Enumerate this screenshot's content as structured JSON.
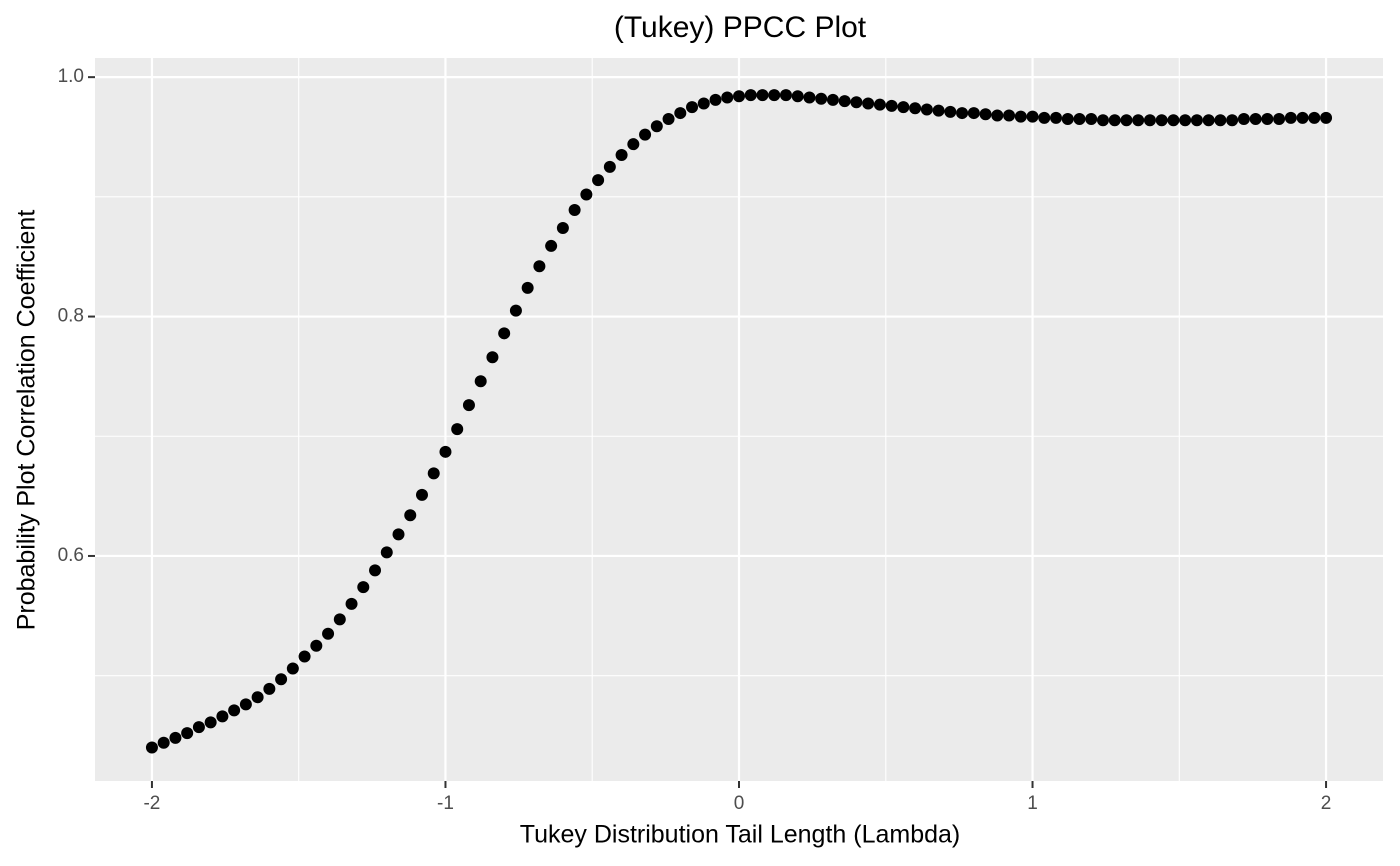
{
  "chart_data": {
    "type": "scatter",
    "title": "(Tukey) PPCC Plot",
    "x_label": "Tukey Distribution Tail Length (Lambda)",
    "y_label": "Probability Plot Correlation Coefficient",
    "xlim": [
      -2.194,
      2.194
    ],
    "ylim": [
      0.412,
      1.016
    ],
    "xticks": [
      -2,
      -1,
      0,
      1,
      2
    ],
    "yticks": [
      0.6,
      0.8,
      {
        "value": 1.0,
        "label": "1.0"
      }
    ],
    "xminor": [
      -1.5,
      -0.5,
      0.5,
      1.5
    ],
    "yminor": [
      0.5,
      0.7,
      0.9
    ],
    "grid": true,
    "color": "#000000",
    "x": [
      -2.0,
      -1.96,
      -1.92,
      -1.88,
      -1.84,
      -1.8,
      -1.76,
      -1.72,
      -1.68,
      -1.64,
      -1.6,
      -1.56,
      -1.52,
      -1.48,
      -1.44,
      -1.4,
      -1.36,
      -1.32,
      -1.28,
      -1.24,
      -1.2,
      -1.16,
      -1.12,
      -1.08,
      -1.04,
      -1.0,
      -0.96,
      -0.92,
      -0.88,
      -0.84,
      -0.8,
      -0.76,
      -0.72,
      -0.68,
      -0.64,
      -0.6,
      -0.56,
      -0.52,
      -0.48,
      -0.44,
      -0.4,
      -0.36,
      -0.32,
      -0.28,
      -0.24,
      -0.2,
      -0.16,
      -0.12,
      -0.08,
      -0.04,
      0.0,
      0.04,
      0.08,
      0.12,
      0.16,
      0.2,
      0.24,
      0.28,
      0.32,
      0.36,
      0.4,
      0.44,
      0.48,
      0.52,
      0.56,
      0.6,
      0.64,
      0.68,
      0.72,
      0.76,
      0.8,
      0.84,
      0.88,
      0.92,
      0.96,
      1.0,
      1.04,
      1.08,
      1.12,
      1.16,
      1.2,
      1.24,
      1.28,
      1.32,
      1.36,
      1.4,
      1.44,
      1.48,
      1.52,
      1.56,
      1.6,
      1.64,
      1.68,
      1.72,
      1.76,
      1.8,
      1.84,
      1.88,
      1.92,
      1.96,
      2.0
    ],
    "values": [
      0.44,
      0.444,
      0.448,
      0.452,
      0.457,
      0.461,
      0.466,
      0.471,
      0.476,
      0.482,
      0.489,
      0.497,
      0.506,
      0.516,
      0.525,
      0.535,
      0.547,
      0.56,
      0.574,
      0.588,
      0.603,
      0.618,
      0.634,
      0.651,
      0.669,
      0.687,
      0.706,
      0.726,
      0.746,
      0.766,
      0.786,
      0.805,
      0.824,
      0.842,
      0.859,
      0.874,
      0.889,
      0.902,
      0.914,
      0.925,
      0.935,
      0.944,
      0.952,
      0.959,
      0.965,
      0.97,
      0.975,
      0.978,
      0.981,
      0.983,
      0.984,
      0.985,
      0.985,
      0.985,
      0.985,
      0.984,
      0.983,
      0.982,
      0.981,
      0.98,
      0.979,
      0.978,
      0.977,
      0.976,
      0.975,
      0.974,
      0.973,
      0.972,
      0.971,
      0.97,
      0.97,
      0.969,
      0.968,
      0.968,
      0.967,
      0.967,
      0.966,
      0.966,
      0.965,
      0.965,
      0.965,
      0.964,
      0.964,
      0.964,
      0.964,
      0.964,
      0.964,
      0.964,
      0.964,
      0.964,
      0.964,
      0.964,
      0.964,
      0.965,
      0.965,
      0.965,
      0.965,
      0.966,
      0.966,
      0.966,
      0.966
    ]
  }
}
